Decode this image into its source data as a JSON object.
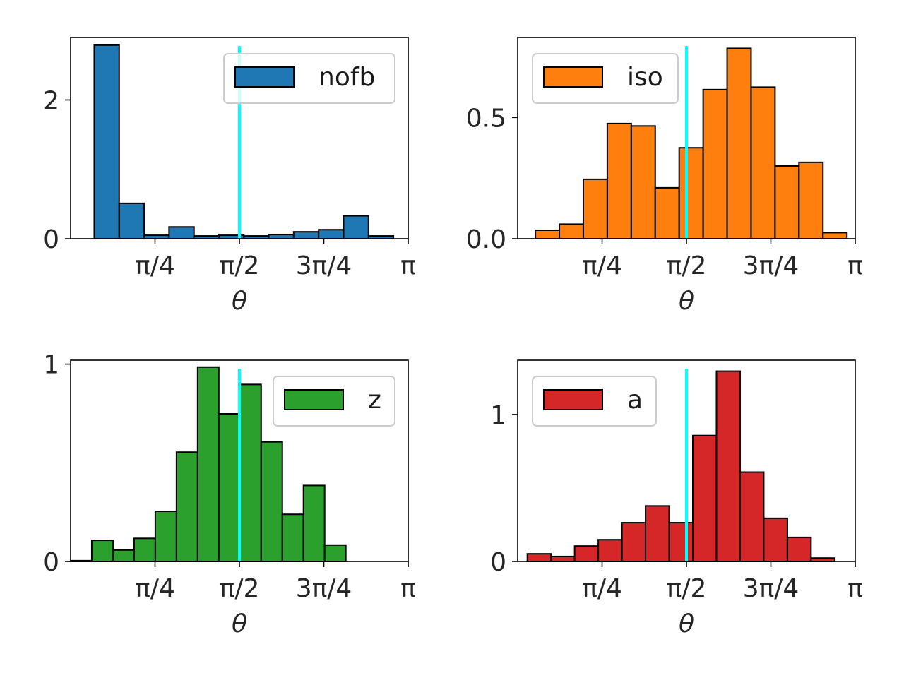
{
  "figure": {
    "background": "#ffffff",
    "reference_line_color": "#00ffff"
  },
  "chart_data": [
    {
      "type": "bar",
      "histogram": true,
      "legend": "nofb",
      "legend_position": "upper right",
      "color": "#1f77b4",
      "xlabel": "θ",
      "xlim": [
        0,
        3.1416
      ],
      "ylim": [
        0,
        2.9
      ],
      "xticks": [
        {
          "value": 0.7854,
          "label": "π/4"
        },
        {
          "value": 1.5708,
          "label": "π/2"
        },
        {
          "value": 2.3562,
          "label": "3π/4"
        },
        {
          "value": 3.1416,
          "label": "π"
        }
      ],
      "yticks": [
        {
          "value": 0,
          "label": "0"
        },
        {
          "value": 2,
          "label": "2"
        }
      ],
      "bin_edges": [
        0.22,
        0.452,
        0.684,
        0.916,
        1.148,
        1.38,
        1.612,
        1.844,
        2.076,
        2.308,
        2.54,
        2.772,
        3.004
      ],
      "values": [
        2.79,
        0.51,
        0.05,
        0.17,
        0.04,
        0.05,
        0.04,
        0.06,
        0.1,
        0.13,
        0.33,
        0.04
      ],
      "reference_line": 1.5708
    },
    {
      "type": "bar",
      "histogram": true,
      "legend": "iso",
      "legend_position": "upper left",
      "color": "#ff7f0e",
      "xlabel": "θ",
      "xlim": [
        0,
        3.1416
      ],
      "ylim": [
        0,
        0.83
      ],
      "xticks": [
        {
          "value": 0.7854,
          "label": "π/4"
        },
        {
          "value": 1.5708,
          "label": "π/2"
        },
        {
          "value": 2.3562,
          "label": "3π/4"
        },
        {
          "value": 3.1416,
          "label": "π"
        }
      ],
      "yticks": [
        {
          "value": 0,
          "label": "0.0"
        },
        {
          "value": 0.5,
          "label": "0.5"
        }
      ],
      "bin_edges": [
        0.165,
        0.388,
        0.611,
        0.834,
        1.057,
        1.28,
        1.503,
        1.726,
        1.949,
        2.172,
        2.395,
        2.618,
        2.841,
        3.064
      ],
      "values": [
        0.035,
        0.06,
        0.245,
        0.475,
        0.465,
        0.21,
        0.375,
        0.615,
        0.785,
        0.625,
        0.3,
        0.315,
        0.025
      ],
      "reference_line": 1.5708
    },
    {
      "type": "bar",
      "histogram": true,
      "legend": "z",
      "legend_position": "upper right",
      "color": "#2ca02c",
      "xlabel": "θ",
      "xlim": [
        0,
        3.1416
      ],
      "ylim": [
        0,
        1.02
      ],
      "xticks": [
        {
          "value": 0.7854,
          "label": "π/4"
        },
        {
          "value": 1.5708,
          "label": "π/2"
        },
        {
          "value": 2.3562,
          "label": "3π/4"
        },
        {
          "value": 3.1416,
          "label": "π"
        }
      ],
      "yticks": [
        {
          "value": 0,
          "label": "0"
        },
        {
          "value": 1,
          "label": "1"
        }
      ],
      "bin_edges": [
        0.0,
        0.197,
        0.394,
        0.591,
        0.788,
        0.985,
        1.182,
        1.379,
        1.576,
        1.773,
        1.97,
        2.167,
        2.364,
        2.561
      ],
      "values": [
        0.004,
        0.107,
        0.058,
        0.117,
        0.254,
        0.554,
        0.985,
        0.748,
        0.897,
        0.606,
        0.239,
        0.385,
        0.083
      ],
      "reference_line": 1.5708
    },
    {
      "type": "bar",
      "histogram": true,
      "legend": "a",
      "legend_position": "upper left",
      "color": "#d62728",
      "xlabel": "θ",
      "xlim": [
        0,
        3.1416
      ],
      "ylim": [
        0,
        1.37
      ],
      "xticks": [
        {
          "value": 0.7854,
          "label": "π/4"
        },
        {
          "value": 1.5708,
          "label": "π/2"
        },
        {
          "value": 2.3562,
          "label": "3π/4"
        },
        {
          "value": 3.1416,
          "label": "π"
        }
      ],
      "yticks": [
        {
          "value": 0,
          "label": "0"
        },
        {
          "value": 1,
          "label": "1"
        }
      ],
      "bin_edges": [
        0.09,
        0.31,
        0.53,
        0.75,
        0.97,
        1.19,
        1.41,
        1.63,
        1.85,
        2.07,
        2.29,
        2.51,
        2.73,
        2.95
      ],
      "values": [
        0.052,
        0.034,
        0.105,
        0.148,
        0.264,
        0.378,
        0.264,
        0.857,
        1.295,
        0.608,
        0.294,
        0.164,
        0.023
      ],
      "reference_line": 1.5708
    }
  ]
}
